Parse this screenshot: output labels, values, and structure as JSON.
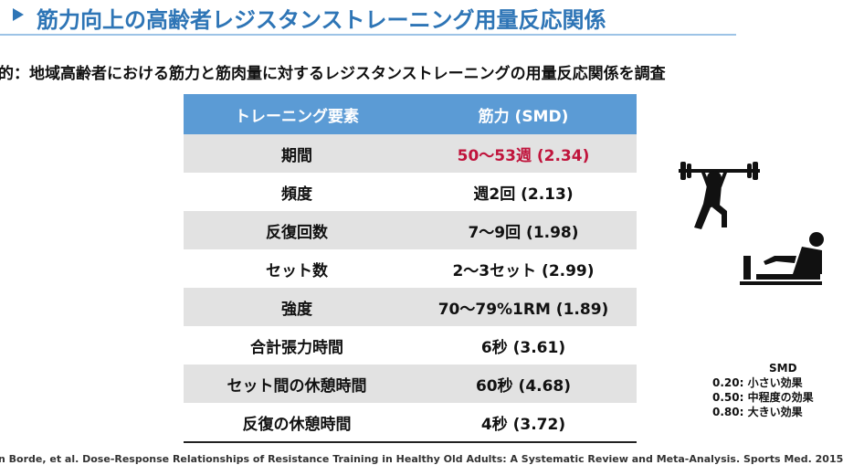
{
  "header": {
    "title": "筋力向上の高齢者レジスタンストレーニング用量反応関係",
    "subtitle": "的：地域高齢者における筋力と筋肉量に対するレジスタンストレーニングの用量反応関係を調査"
  },
  "table": {
    "columns": [
      "トレーニング要素",
      "筋力 (SMD)"
    ],
    "rows": [
      [
        "期間",
        "50〜53週 (2.34)"
      ],
      [
        "頻度",
        "週2回 (2.13)"
      ],
      [
        "反復回数",
        "7〜9回 (1.98)"
      ],
      [
        "セット数",
        "2〜3セット (2.99)"
      ],
      [
        "強度",
        "70〜79%1RM (1.89)"
      ],
      [
        "合計張力時間",
        "6秒 (3.61)"
      ],
      [
        "セット間の休憩時間",
        "60秒 (4.68)"
      ],
      [
        "反復の休憩時間",
        "4秒 (3.72)"
      ]
    ]
  },
  "legend": {
    "title": "SMD",
    "items": [
      "0.20: 小さい効果",
      "0.50: 中程度の効果",
      "0.80: 大きい効果"
    ]
  },
  "footer": {
    "reference": "n Borde, et al. Dose-Response Relationships of Resistance Training in Healthy Old Adults: A Systematic Review and Meta-Analysis. Sports Med. 2015"
  }
}
